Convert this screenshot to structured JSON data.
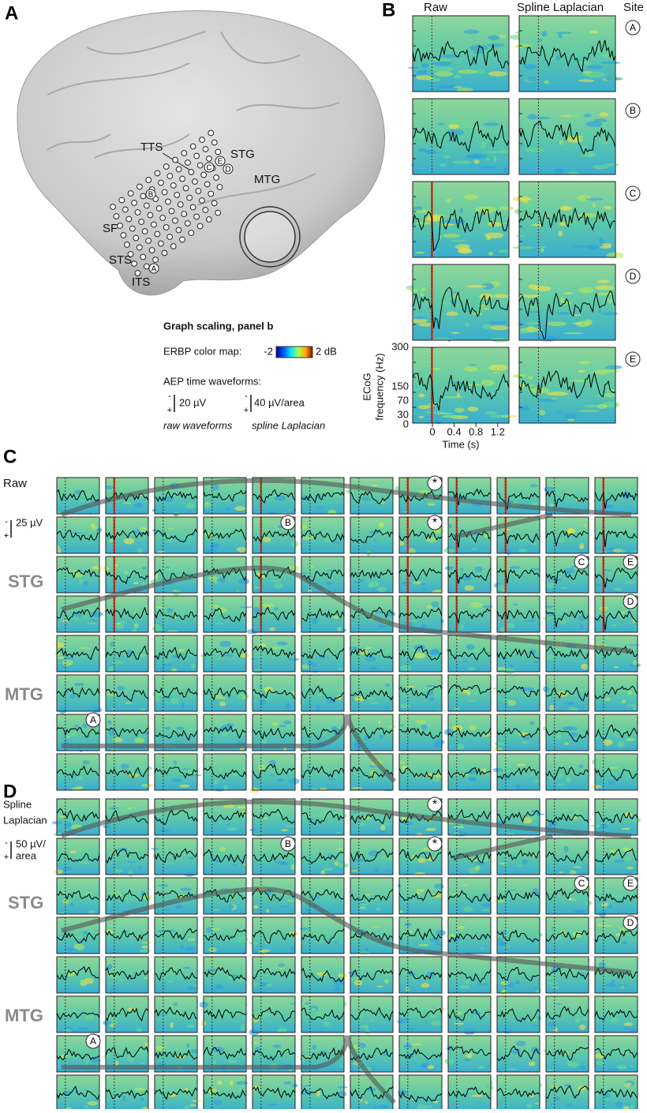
{
  "panel_a": {
    "label": "A",
    "brain_labels": [
      "TTS",
      "STG",
      "MTG",
      "SF",
      "STS",
      "ITS"
    ],
    "sites": [
      "A",
      "B",
      "C",
      "D",
      "E"
    ]
  },
  "panel_b": {
    "label": "B",
    "col_headers": [
      "Raw",
      "Spline Laplacian",
      "Site"
    ],
    "sites": [
      "A",
      "B",
      "C",
      "D",
      "E"
    ],
    "y_label": [
      "ECoG",
      "frequency (Hz)"
    ],
    "yticks": [
      0,
      30,
      70,
      150,
      300
    ],
    "xticks": [
      0,
      0.4,
      0.8,
      1.2
    ],
    "x_label": "Time (s)"
  },
  "scaling": {
    "title": "Graph scaling, panel b",
    "colormap_label": "ERBP color map:",
    "cmin": "-2",
    "cmax": "2 dB",
    "aep_label": "AEP time waveforms:",
    "polarity": [
      "-",
      "+"
    ],
    "raw_scale": "20 µV",
    "lap_scale": "40 µV/area",
    "raw_caption": "raw waveforms",
    "lap_caption": "spline Laplacian"
  },
  "panel_c": {
    "label": "C",
    "title": [
      "Raw"
    ],
    "scale": [
      "25 µV"
    ],
    "polarity": [
      "-",
      "+"
    ],
    "regions": [
      "STG",
      "MTG"
    ],
    "markers": [
      "*",
      "*",
      "B",
      "C",
      "E",
      "D",
      "A"
    ]
  },
  "panel_d": {
    "label": "D",
    "title": [
      "Spline",
      "Laplacian"
    ],
    "scale": [
      "50 µV/",
      "area"
    ],
    "polarity": [
      "-",
      "+"
    ],
    "regions": [
      "STG",
      "MTG"
    ],
    "markers": [
      "*",
      "*",
      "B",
      "C",
      "E",
      "D",
      "A"
    ]
  }
}
